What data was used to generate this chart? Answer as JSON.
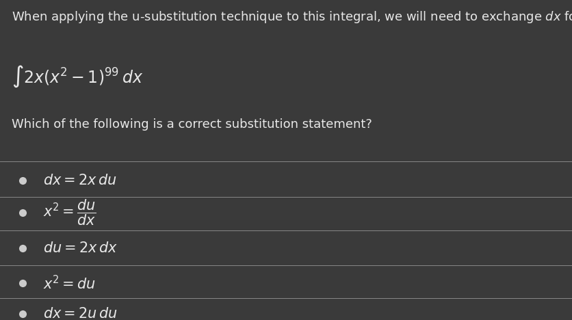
{
  "background_color": "#3a3a3a",
  "text_color": "#e8e8e8",
  "divider_color": "#888888",
  "bullet_color": "#cccccc",
  "title_fontsize": 13,
  "integral_fontsize": 17,
  "question_fontsize": 13,
  "option_fontsize": 15,
  "figsize": [
    8.37,
    4.68
  ],
  "dpi": 100
}
